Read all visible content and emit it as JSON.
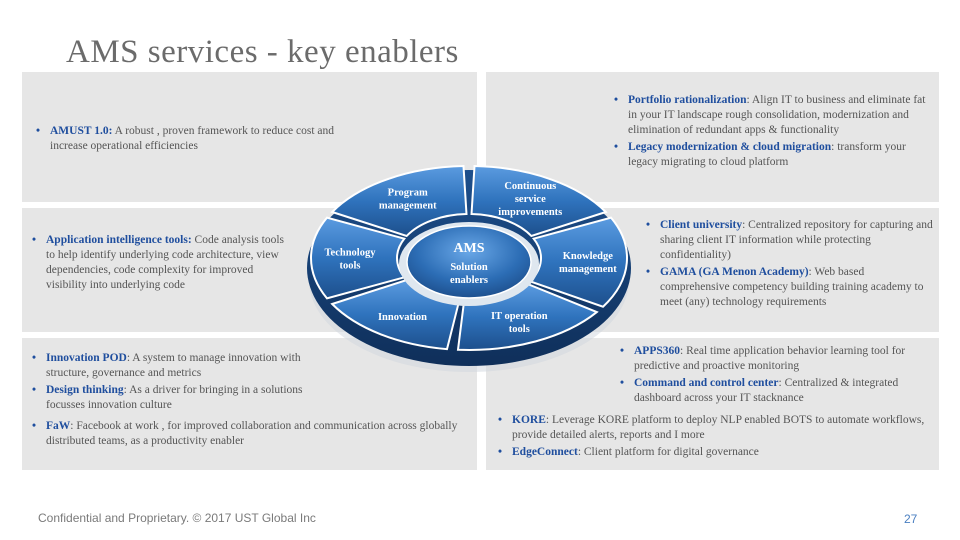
{
  "title": "AMS services - key enablers",
  "wheel": {
    "hub": {
      "title": "AMS",
      "subtitle_line1": "Solution",
      "subtitle_line2": "enablers"
    },
    "segments": {
      "program_management": [
        "Program",
        "management"
      ],
      "continuous_service": [
        "Continuous",
        "service",
        "improvements"
      ],
      "knowledge_management": [
        "Knowledge",
        "management"
      ],
      "it_operation_tools": [
        "IT operation",
        "tools"
      ],
      "innovation": [
        "Innovation"
      ],
      "technology_tools": [
        "Technology",
        "tools"
      ]
    }
  },
  "panels": {
    "top_left": {
      "items": [
        {
          "kw": "AMUST 1.0:",
          "text": " A robust , proven framework to reduce cost and increase operational efficiencies"
        }
      ]
    },
    "top_right": {
      "items": [
        {
          "kw": "Portfolio rationalization",
          "text": ":  Align IT to business and eliminate fat in your IT landscape rough consolidation, modernization and elimination of redundant apps & functionality"
        },
        {
          "kw": "Legacy modernization & cloud migration",
          "text": ": transform your legacy migrating to cloud platform"
        }
      ]
    },
    "mid_left": {
      "items": [
        {
          "kw": "Application intelligence tools:",
          "text": " Code analysis tools to help identify underlying code architecture, view dependencies, code complexity for improved visibility into underlying code"
        }
      ]
    },
    "mid_right": {
      "items": [
        {
          "kw": "Client university",
          "text": ":  Centralized repository for capturing and sharing client IT information while protecting confidentiality)"
        },
        {
          "kw": " GAMA (GA Menon Academy)",
          "text": ": Web based comprehensive competency building training academy to meet (any) technology requirements"
        }
      ]
    },
    "bottom_left": {
      "items": [
        {
          "kw": "Innovation POD",
          "text": ": A system to manage innovation with structure, governance and metrics"
        },
        {
          "kw": "Design thinking",
          "text": ": As a driver for bringing in a solutions focusses innovation culture"
        }
      ],
      "items2": [
        {
          "kw": "FaW",
          "text": ": Facebook at work , for improved collaboration and communication across globally distributed teams, as a productivity enabler"
        }
      ]
    },
    "bottom_right": {
      "items": [
        {
          "kw": "APPS360",
          "text": ": Real time application behavior learning tool for predictive and proactive monitoring"
        },
        {
          "kw": "Command and control center",
          "text": ": Centralized & integrated dashboard across your IT stacknance"
        }
      ],
      "items2": [
        {
          "kw": "KORE",
          "text": ": Leverage KORE platform to deploy NLP enabled BOTS to automate workflows, provide detailed alerts, reports and I more"
        },
        {
          "kw": "EdgeConnect",
          "text": ": Client platform for digital governance"
        }
      ]
    }
  },
  "footer": "Confidential and Proprietary. © 2017  UST  Global Inc",
  "page_number": "27",
  "colors": {
    "accent": "#1f4e9e",
    "panel": "#e6e6e6",
    "wheel": "#2e6fb5"
  }
}
